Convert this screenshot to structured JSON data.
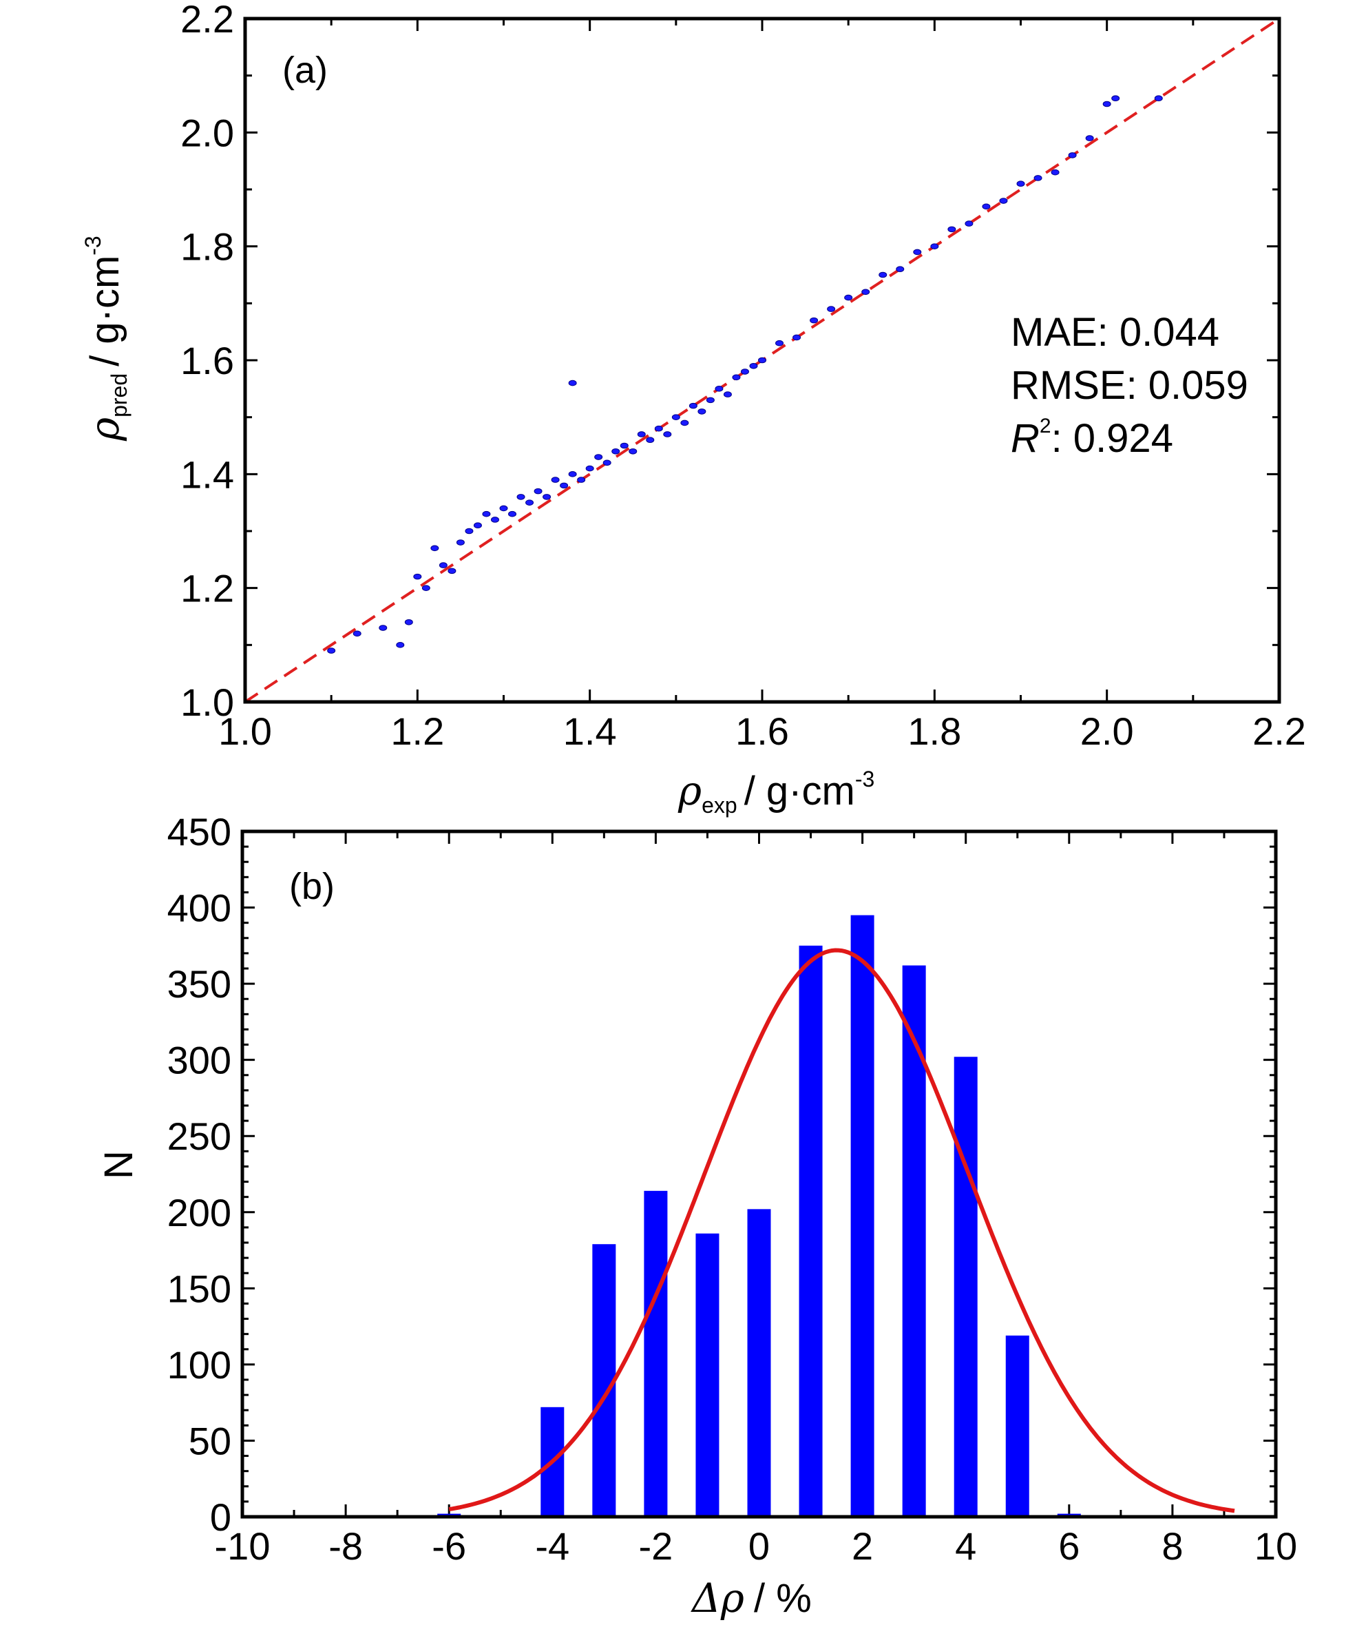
{
  "chart_data": [
    {
      "type": "scatter",
      "panel_label": "(a)",
      "xlabel": {
        "symbol": "ρ",
        "sub": "exp",
        "unit": "/ g·cm",
        "sup": "-3"
      },
      "ylabel": {
        "symbol": "ρ",
        "sub": "pred",
        "unit": "/ g·cm",
        "sup": "-3"
      },
      "xlim": [
        1.0,
        2.2
      ],
      "ylim": [
        1.0,
        2.2
      ],
      "xticks": [
        "1.0",
        "1.2",
        "1.4",
        "1.6",
        "1.8",
        "2.0",
        "2.2"
      ],
      "yticks": [
        "1.0",
        "1.2",
        "1.4",
        "1.6",
        "1.8",
        "2.0",
        "2.2"
      ],
      "point_color": "#1a1aff",
      "reference_line": {
        "style": "dashed",
        "color": "#e02020",
        "x": [
          1.0,
          2.2
        ],
        "y": [
          1.0,
          2.2
        ]
      },
      "annotations": {
        "mae": "MAE: 0.044",
        "rmse": "RMSE: 0.059",
        "r2_symbol": "R",
        "r2_sup": "2",
        "r2_value": ": 0.924"
      },
      "series": [
        {
          "x": [
            1.18,
            1.19,
            1.2,
            1.21,
            1.22,
            1.23,
            1.24,
            1.25,
            1.26,
            1.27,
            1.28,
            1.29,
            1.3,
            1.31,
            1.32,
            1.33,
            1.34,
            1.35,
            1.36,
            1.37,
            1.38,
            1.39,
            1.4,
            1.41,
            1.42,
            1.43,
            1.44,
            1.45,
            1.46,
            1.47,
            1.48,
            1.49,
            1.5,
            1.51,
            1.52,
            1.53,
            1.54,
            1.55,
            1.56,
            1.57,
            1.58,
            1.59,
            1.6,
            1.62,
            1.64,
            1.66,
            1.68,
            1.7,
            1.72,
            1.74,
            1.76,
            1.78,
            1.8,
            1.82,
            1.84,
            1.86,
            1.88,
            1.9,
            1.92,
            1.94,
            1.96,
            1.98,
            2.0,
            2.01,
            2.06,
            1.1,
            1.13,
            1.16,
            1.38
          ],
          "y": [
            1.1,
            1.14,
            1.22,
            1.2,
            1.27,
            1.24,
            1.23,
            1.28,
            1.3,
            1.31,
            1.33,
            1.32,
            1.34,
            1.33,
            1.36,
            1.35,
            1.37,
            1.36,
            1.39,
            1.38,
            1.4,
            1.39,
            1.41,
            1.43,
            1.42,
            1.44,
            1.45,
            1.44,
            1.47,
            1.46,
            1.48,
            1.47,
            1.5,
            1.49,
            1.52,
            1.51,
            1.53,
            1.55,
            1.54,
            1.57,
            1.58,
            1.59,
            1.6,
            1.63,
            1.64,
            1.67,
            1.69,
            1.71,
            1.72,
            1.75,
            1.76,
            1.79,
            1.8,
            1.83,
            1.84,
            1.87,
            1.88,
            1.91,
            1.92,
            1.93,
            1.96,
            1.99,
            2.05,
            2.06,
            2.06,
            1.09,
            1.12,
            1.13,
            1.56
          ]
        }
      ]
    },
    {
      "type": "bar",
      "panel_label": "(b)",
      "xlabel": {
        "symbol": "Δρ",
        "unit": "/ %"
      },
      "ylabel": "N",
      "xlim": [
        -10,
        10
      ],
      "ylim": [
        0,
        450
      ],
      "xticks": [
        "-10",
        "-8",
        "-6",
        "-4",
        "-2",
        "0",
        "2",
        "4",
        "6",
        "8",
        "10"
      ],
      "yticks": [
        "0",
        "50",
        "100",
        "150",
        "200",
        "250",
        "300",
        "350",
        "400",
        "450"
      ],
      "bar_color": "#0000ff",
      "curve_color": "#e01818",
      "x": [
        -6.0,
        -4.0,
        -3.0,
        -2.0,
        -1.0,
        0.0,
        1.0,
        2.0,
        3.0,
        4.0,
        5.0,
        6.0
      ],
      "values": [
        2,
        72,
        179,
        214,
        186,
        202,
        375,
        395,
        362,
        302,
        119,
        2
      ],
      "fit_curve": {
        "type": "gaussian",
        "mean": 1.5,
        "sigma": 2.55,
        "peak": 372,
        "x_range": [
          -6.0,
          9.2
        ]
      }
    }
  ]
}
